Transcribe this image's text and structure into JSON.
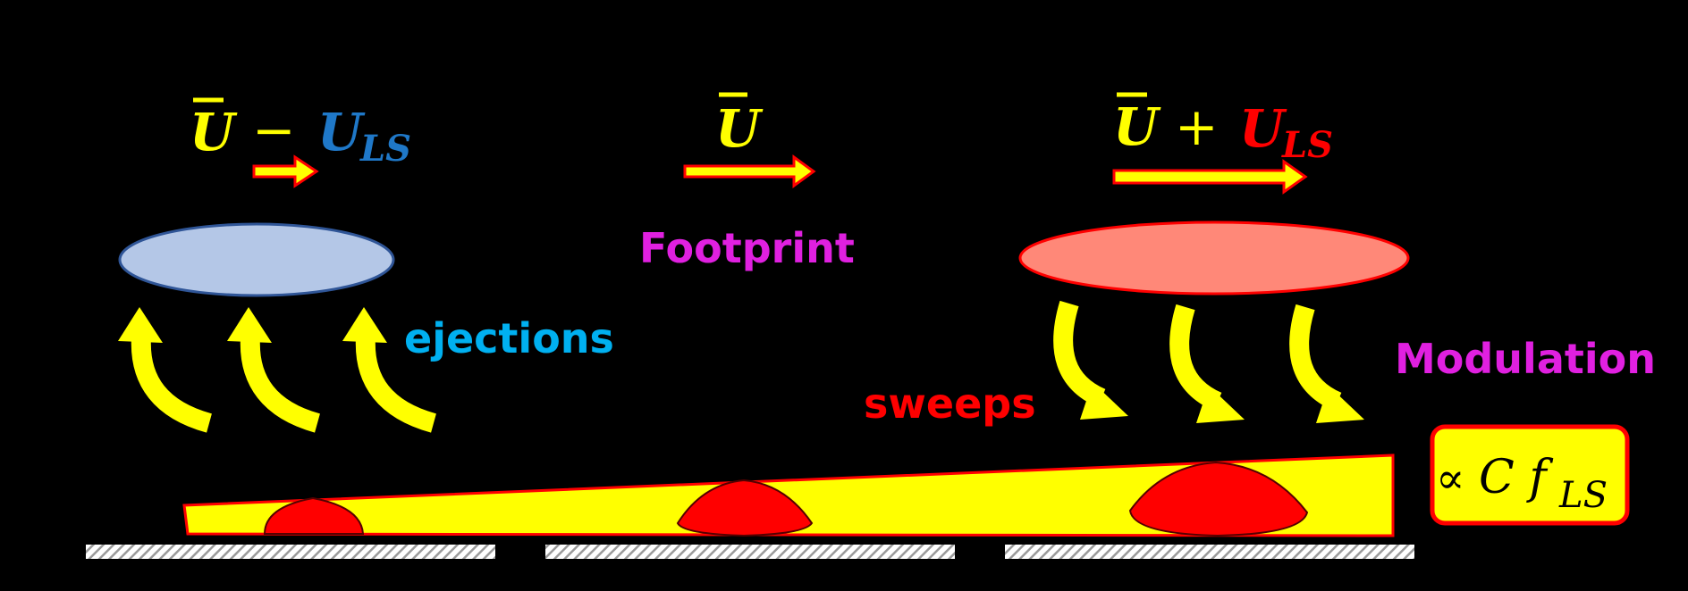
{
  "colors": {
    "background": "#000000",
    "yellow": "#FFFF00",
    "blue_text": "#1F78C8",
    "red": "#FF0000",
    "magenta": "#E020E0",
    "cyan": "#00B0F0",
    "ellipse_low": "#B4C7E7",
    "ellipse_low_stroke": "#2F5597",
    "ellipse_high": "#FF8878",
    "ellipse_high_stroke": "#FF0000",
    "hatch": "#A0A0A0"
  },
  "left": {
    "ubar": "U",
    "minus": "−",
    "uls": "U",
    "uls_sub": "LS",
    "side_label": "ejections"
  },
  "middle": {
    "ubar": "U",
    "label": "Footprint"
  },
  "right": {
    "ubar": "U",
    "plus": "+",
    "uls": "U",
    "uls_sub": "LS",
    "side_label": "sweeps",
    "label": "Modulation"
  },
  "box": {
    "propto": "∝",
    "cf": "C f",
    "sub": "LS"
  },
  "icons": [
    "arrow-right-icon",
    "curved-arrow-up-icon",
    "curved-arrow-down-icon",
    "hatched-wall-icon"
  ]
}
